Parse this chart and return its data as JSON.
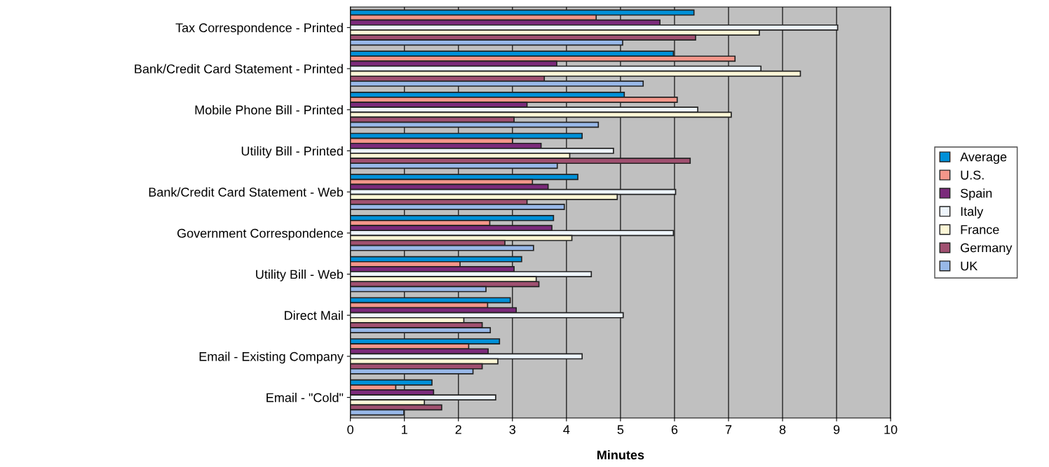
{
  "chart_data": {
    "type": "bar",
    "orientation": "horizontal",
    "xlabel": "Minutes",
    "categories": [
      "Tax Correspondence - Printed",
      "Bank/Credit Card Statement - Printed",
      "Mobile Phone Bill - Printed",
      "Utility Bill - Printed",
      "Bank/Credit Card Statement - Web",
      "Government Correspondence",
      "Utility Bill - Web",
      "Direct Mail",
      "Email - Existing Company",
      "Email - \"Cold\""
    ],
    "series": [
      {
        "name": "Average",
        "color": "#0090d8",
        "values": [
          6.36,
          5.98,
          5.07,
          4.29,
          4.21,
          3.76,
          3.17,
          2.96,
          2.76,
          1.51
        ]
      },
      {
        "name": "U.S.",
        "color": "#f4968a",
        "values": [
          4.55,
          7.12,
          6.05,
          3.0,
          3.37,
          2.58,
          2.03,
          2.54,
          2.19,
          0.84
        ]
      },
      {
        "name": "Spain",
        "color": "#7b2a7b",
        "values": [
          5.73,
          3.82,
          3.27,
          3.53,
          3.66,
          3.73,
          3.03,
          3.07,
          2.55,
          1.54
        ]
      },
      {
        "name": "Italy",
        "color": "#eef5fc",
        "values": [
          9.02,
          7.6,
          6.43,
          4.87,
          6.02,
          5.98,
          4.46,
          5.05,
          4.29,
          2.69
        ]
      },
      {
        "name": "France",
        "color": "#fdf7d6",
        "values": [
          7.57,
          8.33,
          7.05,
          4.06,
          4.94,
          4.1,
          3.44,
          2.1,
          2.73,
          1.37
        ]
      },
      {
        "name": "Germany",
        "color": "#a05070",
        "values": [
          6.39,
          3.59,
          3.03,
          6.29,
          3.27,
          2.86,
          3.49,
          2.44,
          2.44,
          1.69
        ]
      },
      {
        "name": "UK",
        "color": "#98b8e8",
        "values": [
          5.04,
          5.42,
          4.59,
          3.83,
          3.96,
          3.39,
          2.51,
          2.59,
          2.27,
          0.99
        ]
      }
    ],
    "xlim": [
      0,
      10
    ],
    "xticks": [
      0,
      1,
      2,
      3,
      4,
      5,
      6,
      7,
      8,
      9,
      10
    ],
    "grid": "x",
    "legend": "right"
  }
}
